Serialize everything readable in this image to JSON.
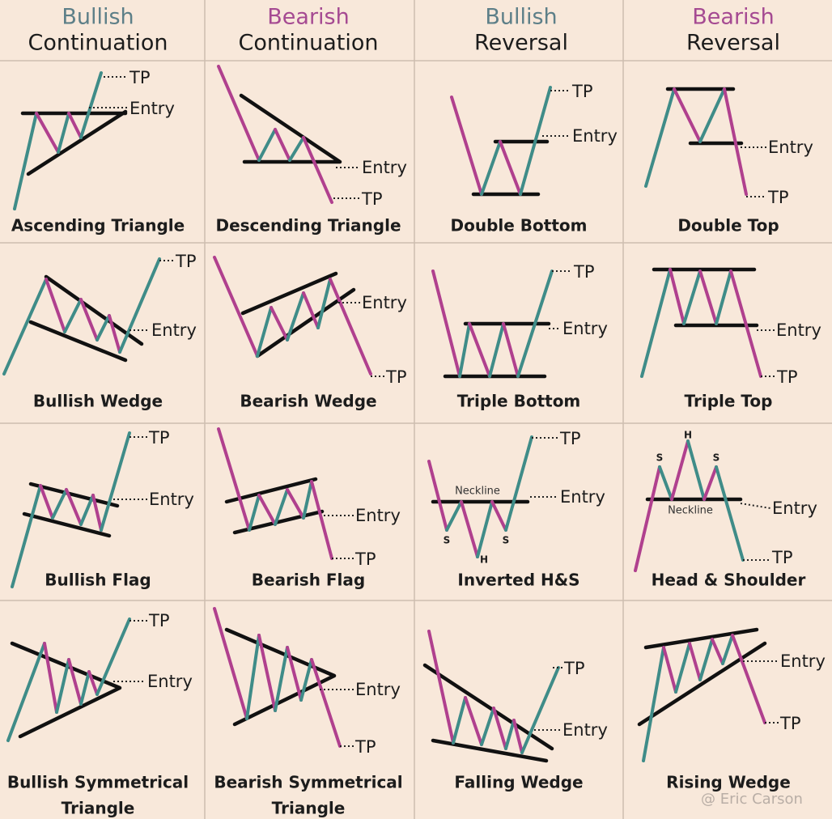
{
  "headers": [
    {
      "line1": "Bullish",
      "line2": "Continuation"
    },
    {
      "line1": "Bearish",
      "line2": "Continuation"
    },
    {
      "line1": "Bullish",
      "line2": "Reversal"
    },
    {
      "line1": "Bearish",
      "line2": "Reversal"
    }
  ],
  "cells": [
    [
      {
        "name": "Ascending Triangle",
        "tp": "TP",
        "entry": "Entry"
      },
      {
        "name": "Descending Triangle",
        "tp": "TP",
        "entry": "Entry"
      },
      {
        "name": "Double Bottom",
        "tp": "TP",
        "entry": "Entry"
      },
      {
        "name": "Double Top",
        "tp": "TP",
        "entry": "Entry"
      }
    ],
    [
      {
        "name": "Bullish Wedge",
        "tp": "TP",
        "entry": "Entry"
      },
      {
        "name": "Bearish Wedge",
        "tp": "TP",
        "entry": "Entry"
      },
      {
        "name": "Triple Bottom",
        "tp": "TP",
        "entry": "Entry"
      },
      {
        "name": "Triple Top",
        "tp": "TP",
        "entry": "Entry"
      }
    ],
    [
      {
        "name": "Bullish Flag",
        "tp": "TP",
        "entry": "Entry"
      },
      {
        "name": "Bearish Flag",
        "tp": "TP",
        "entry": "Entry"
      },
      {
        "name": "Inverted H&S",
        "tp": "TP",
        "entry": "Entry",
        "neckline": "Neckline",
        "markers": [
          "S",
          "H",
          "S"
        ]
      },
      {
        "name": "Head & Shoulder",
        "tp": "TP",
        "entry": "Entry",
        "neckline": "Neckline",
        "markers": [
          "S",
          "H",
          "S"
        ]
      }
    ],
    [
      {
        "name_lines": [
          "Bullish Symmetrical",
          "Triangle"
        ],
        "tp": "TP",
        "entry": "Entry"
      },
      {
        "name_lines": [
          "Bearish Symmetrical",
          "Triangle"
        ],
        "tp": "TP",
        "entry": "Entry"
      },
      {
        "name": "Falling Wedge",
        "tp": "TP",
        "entry": "Entry"
      },
      {
        "name": "Rising Wedge",
        "tp": "TP",
        "entry": "Entry"
      }
    ]
  ],
  "watermark": "@ Eric Carson"
}
